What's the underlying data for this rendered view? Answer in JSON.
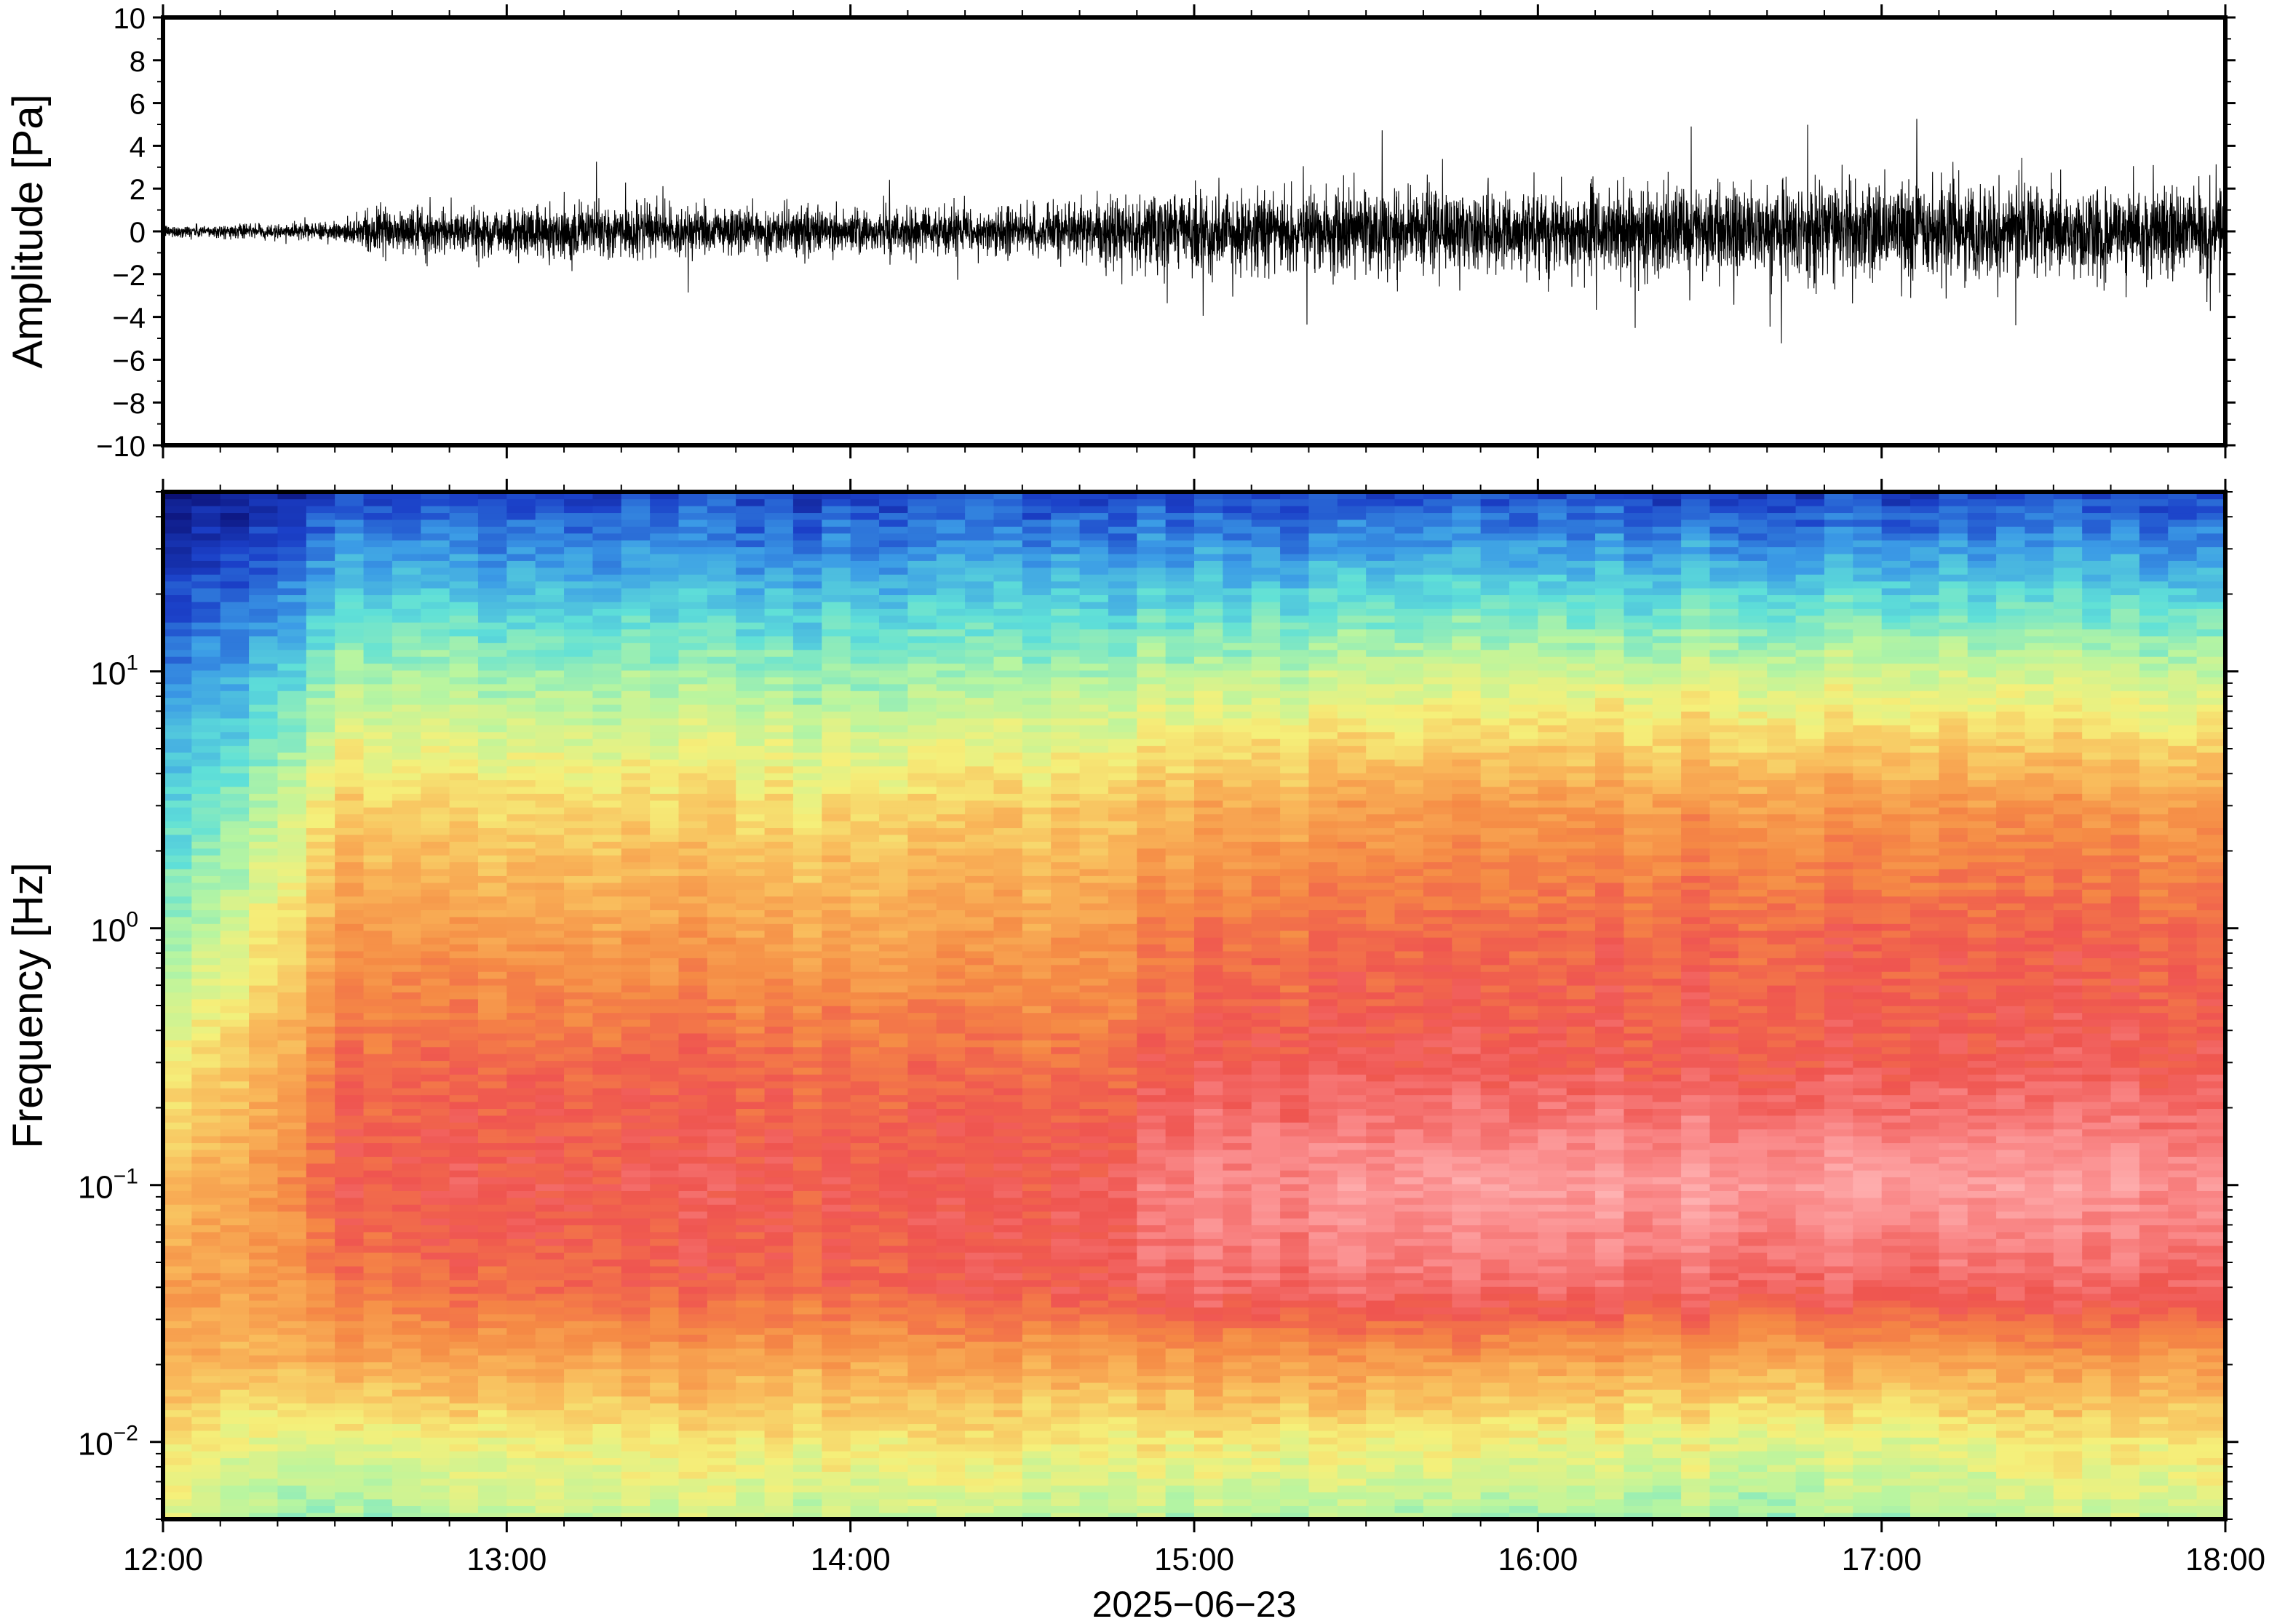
{
  "chart_data": [
    {
      "type": "line",
      "name": "waveform",
      "ylabel": "Amplitude [Pa]",
      "ylim": [
        -10,
        10
      ],
      "y_ticks": [
        -10,
        -8,
        -6,
        -4,
        -2,
        0,
        2,
        4,
        6,
        8,
        10
      ],
      "y_tick_labels": [
        "−10",
        "−8",
        "−6",
        "−4",
        "−2",
        "0",
        "2",
        "4",
        "6",
        "8",
        "10"
      ],
      "xlim": [
        "2025-06-23T12:00",
        "2025-06-23T18:00"
      ],
      "envelope": {
        "time": [
          "12:00",
          "12:20",
          "12:32",
          "12:40",
          "13:00",
          "13:20",
          "13:40",
          "14:00",
          "14:20",
          "14:40",
          "14:50",
          "15:00",
          "15:20",
          "15:40",
          "16:00",
          "16:20",
          "16:40",
          "17:00",
          "17:20",
          "17:40",
          "18:00"
        ],
        "typical_amplitude": [
          0.3,
          0.3,
          0.5,
          1.0,
          1.1,
          1.2,
          1.1,
          1.0,
          1.1,
          1.2,
          1.6,
          1.7,
          1.8,
          1.8,
          1.8,
          2.0,
          2.2,
          2.2,
          2.1,
          2.0,
          2.0
        ],
        "peak_amplitude": [
          0.5,
          0.5,
          1.0,
          2.3,
          2.8,
          3.9,
          2.5,
          2.6,
          2.4,
          3.0,
          4.0,
          4.5,
          5.8,
          5.0,
          4.8,
          5.5,
          6.3,
          5.8,
          5.3,
          6.3,
          4.2
        ]
      }
    },
    {
      "type": "heatmap",
      "name": "spectrogram",
      "ylabel": "Frequency [Hz]",
      "yscale": "log",
      "ylim": [
        0.005,
        50
      ],
      "y_ticks": [
        0.01,
        0.1,
        1,
        10
      ],
      "y_tick_labels": [
        {
          "base": "10",
          "exp": "−2"
        },
        {
          "base": "10",
          "exp": "−1"
        },
        {
          "base": "10",
          "exp": "0"
        },
        {
          "base": "10",
          "exp": "1"
        }
      ],
      "xlabel": "2025−06−23",
      "x_ticks": [
        "12:00",
        "13:00",
        "14:00",
        "15:00",
        "16:00",
        "17:00",
        "18:00"
      ],
      "colormap": [
        "#0b0f73",
        "#1b40c8",
        "#3b9be6",
        "#5fe0d8",
        "#b8f5a0",
        "#f5f07a",
        "#f9b85a",
        "#f58a45",
        "#ef5550",
        "#fa8a8a",
        "#ffb6b6"
      ],
      "levels": {
        "frequency_hz": [
          0.005,
          0.01,
          0.02,
          0.04,
          0.1,
          0.3,
          1,
          3,
          10,
          20,
          50
        ],
        "time": [
          "12:00",
          "12:32",
          "13:00",
          "14:00",
          "14:40",
          "15:00",
          "16:00",
          "17:00",
          "18:00"
        ],
        "values": [
          [
            4.5,
            3.6,
            4.2,
            4.3,
            4.0,
            4.0,
            3.7,
            4.0,
            4.4
          ],
          [
            5.0,
            4.6,
            5.0,
            5.2,
            5.0,
            5.1,
            4.8,
            4.8,
            5.2
          ],
          [
            6.0,
            6.3,
            6.3,
            6.4,
            6.3,
            6.5,
            6.3,
            6.4,
            6.5
          ],
          [
            6.2,
            7.2,
            7.6,
            7.7,
            7.9,
            8.5,
            8.4,
            8.4,
            8.2
          ],
          [
            5.5,
            7.9,
            8.0,
            8.0,
            8.0,
            9.0,
            9.4,
            9.6,
            9.1
          ],
          [
            4.7,
            7.4,
            7.6,
            7.6,
            7.3,
            8.0,
            8.0,
            8.1,
            8.0
          ],
          [
            3.2,
            6.6,
            6.5,
            6.4,
            6.5,
            7.3,
            7.5,
            7.8,
            7.6
          ],
          [
            2.4,
            5.5,
            5.4,
            5.4,
            5.6,
            6.2,
            6.6,
            6.8,
            6.5
          ],
          [
            1.4,
            3.8,
            3.7,
            3.6,
            3.8,
            4.0,
            4.3,
            4.5,
            4.1
          ],
          [
            0.7,
            2.7,
            2.5,
            2.5,
            2.6,
            2.7,
            2.9,
            3.0,
            2.7
          ],
          [
            0.0,
            1.0,
            1.0,
            1.0,
            1.0,
            1.0,
            1.0,
            1.0,
            1.0
          ]
        ]
      }
    }
  ]
}
